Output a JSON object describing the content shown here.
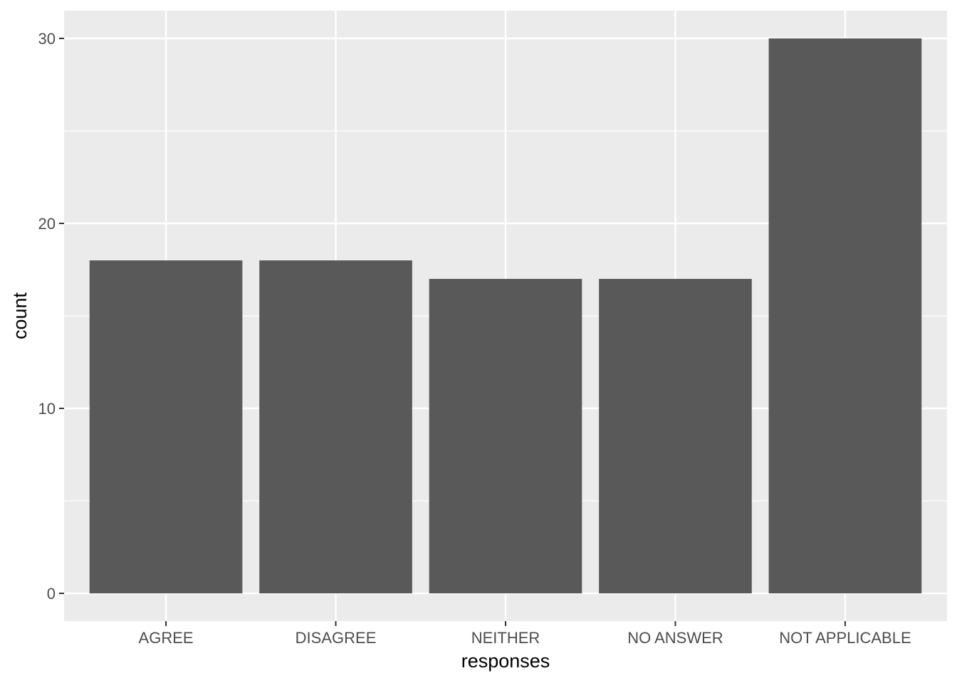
{
  "colors": {
    "panel_background": "#ebebeb",
    "grid_major": "#ffffff",
    "grid_minor": "#f5f5f5",
    "bar_fill": "#595959",
    "tick_mark": "#333333",
    "tick_label": "#4d4d4d",
    "axis_title": "#000000"
  },
  "chart_data": {
    "type": "bar",
    "title": "",
    "xlabel": "responses",
    "ylabel": "count",
    "categories": [
      "AGREE",
      "DISAGREE",
      "NEITHER",
      "NO ANSWER",
      "NOT APPLICABLE"
    ],
    "values": [
      18,
      18,
      17,
      17,
      30
    ],
    "ylim": [
      -1.5,
      31.5
    ],
    "yticks": [
      0,
      10,
      20,
      30
    ],
    "yticklabels": [
      "0",
      "10",
      "20",
      "30"
    ],
    "grid": true,
    "legend": "none"
  }
}
